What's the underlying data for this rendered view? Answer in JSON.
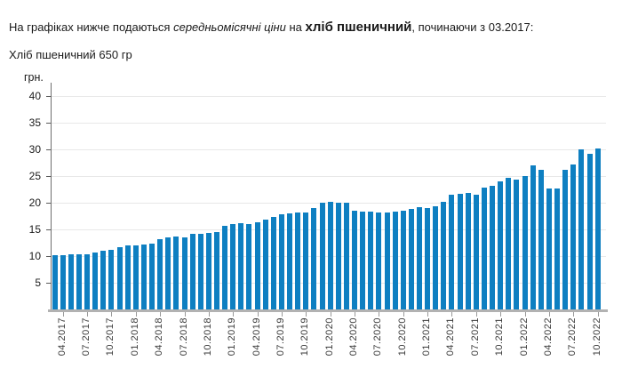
{
  "header": {
    "prefix": "На графіках нижче подаються ",
    "emphasis": "середньомісячні ціни",
    "conjunction": " на ",
    "product": "хліб пшеничний",
    "suffix": ", починаючи з 03.2017:"
  },
  "chart_data": {
    "type": "bar",
    "title": "Хліб пшеничний 650 гр",
    "unit_label": "грн.",
    "bar_color": "#0e7fc1",
    "grid": true,
    "legend": "none",
    "ylim": [
      0,
      42
    ],
    "yticks": [
      5,
      10,
      15,
      20,
      25,
      30,
      35,
      40
    ],
    "x_tick_labels": [
      "04.2017",
      "07.2017",
      "10.2017",
      "01.2018",
      "04.2018",
      "07.2018",
      "10.2018",
      "01.2019",
      "04.2019",
      "07.2019",
      "10.2019",
      "01.2020",
      "04.2020",
      "07.2020",
      "10.2020",
      "01.2021",
      "04.2021",
      "07.2021",
      "10.2021",
      "01.2022",
      "04.2022",
      "07.2022",
      "10.2022"
    ],
    "categories": [
      "03.2017",
      "04.2017",
      "05.2017",
      "06.2017",
      "07.2017",
      "08.2017",
      "09.2017",
      "10.2017",
      "11.2017",
      "12.2017",
      "01.2018",
      "02.2018",
      "03.2018",
      "04.2018",
      "05.2018",
      "06.2018",
      "07.2018",
      "08.2018",
      "09.2018",
      "10.2018",
      "11.2018",
      "12.2018",
      "01.2019",
      "02.2019",
      "03.2019",
      "04.2019",
      "05.2019",
      "06.2019",
      "07.2019",
      "08.2019",
      "09.2019",
      "10.2019",
      "11.2019",
      "12.2019",
      "01.2020",
      "02.2020",
      "03.2020",
      "04.2020",
      "05.2020",
      "06.2020",
      "07.2020",
      "08.2020",
      "09.2020",
      "10.2020",
      "11.2020",
      "12.2020",
      "01.2021",
      "02.2021",
      "03.2021",
      "04.2021",
      "05.2021",
      "06.2021",
      "07.2021",
      "08.2021",
      "09.2021",
      "10.2021",
      "11.2021",
      "12.2021",
      "01.2022",
      "02.2022",
      "03.2022",
      "04.2022",
      "05.2022",
      "06.2022",
      "07.2022",
      "08.2022",
      "09.2022",
      "10.2022"
    ],
    "values": [
      10.2,
      10.2,
      10.3,
      10.3,
      10.4,
      10.7,
      11.0,
      11.2,
      11.6,
      12.0,
      12.0,
      12.1,
      12.4,
      13.1,
      13.5,
      13.7,
      13.5,
      14.1,
      14.2,
      14.3,
      14.5,
      15.7,
      16.0,
      16.2,
      16.0,
      16.3,
      16.8,
      17.4,
      17.8,
      18.0,
      18.1,
      18.1,
      19.0,
      20.0,
      20.1,
      20.0,
      20.0,
      18.5,
      18.3,
      18.3,
      18.2,
      18.2,
      18.3,
      18.5,
      18.8,
      19.1,
      19.0,
      19.3,
      20.2,
      21.5,
      21.7,
      21.9,
      21.5,
      22.8,
      23.2,
      24.0,
      24.6,
      24.4,
      25.0,
      27.0,
      26.1,
      22.6,
      22.6,
      26.2,
      27.1,
      30.0,
      29.1,
      30.2
    ]
  }
}
